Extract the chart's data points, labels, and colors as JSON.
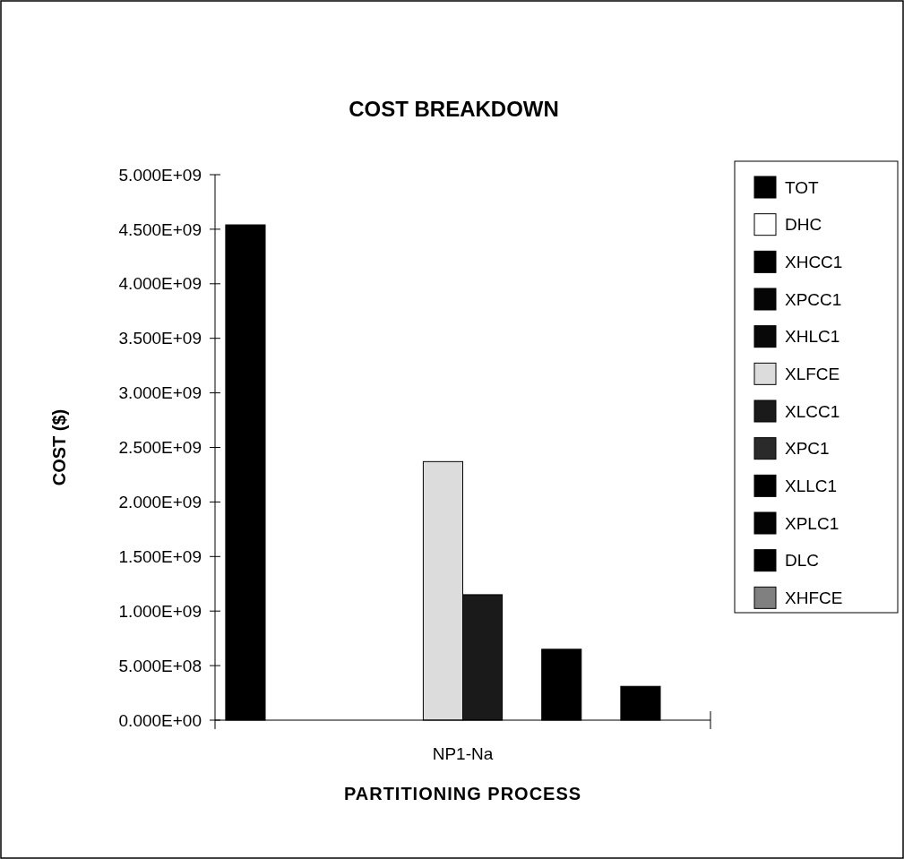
{
  "chart_data": {
    "type": "bar",
    "title": "COST BREAKDOWN",
    "xlabel": "PARTITIONING PROCESS",
    "ylabel": "COST ($)",
    "categories": [
      "NP1-Na"
    ],
    "series": [
      {
        "name": "TOT",
        "color": "#000000",
        "values": [
          4540000000
        ]
      },
      {
        "name": "DHC",
        "color": "#ffffff",
        "values": [
          0
        ]
      },
      {
        "name": "XHCC1",
        "color": "#000000",
        "values": [
          0
        ]
      },
      {
        "name": "XPCC1",
        "color": "#050505",
        "values": [
          0
        ]
      },
      {
        "name": "XHLC1",
        "color": "#080808",
        "values": [
          0
        ]
      },
      {
        "name": "XLFCE",
        "color": "#dcdcdc",
        "values": [
          2370000000
        ]
      },
      {
        "name": "XLCC1",
        "color": "#1a1a1a",
        "values": [
          1150000000
        ]
      },
      {
        "name": "XPC1",
        "color": "#2a2a2a",
        "values": [
          0
        ]
      },
      {
        "name": "XLLC1",
        "color": "#000000",
        "values": [
          650000000
        ]
      },
      {
        "name": "XPLC1",
        "color": "#030303",
        "values": [
          0
        ]
      },
      {
        "name": "DLC",
        "color": "#000000",
        "values": [
          310000000
        ]
      },
      {
        "name": "XHFCE",
        "color": "#808080",
        "values": [
          0
        ]
      }
    ],
    "ylim": [
      0,
      5000000000
    ],
    "yticks": [
      {
        "value": 0,
        "label": "0.000E+00"
      },
      {
        "value": 500000000,
        "label": "5.000E+08"
      },
      {
        "value": 1000000000,
        "label": "1.000E+09"
      },
      {
        "value": 1500000000,
        "label": "1.500E+09"
      },
      {
        "value": 2000000000,
        "label": "2.000E+09"
      },
      {
        "value": 2500000000,
        "label": "2.500E+09"
      },
      {
        "value": 3000000000,
        "label": "3.000E+09"
      },
      {
        "value": 3500000000,
        "label": "3.500E+09"
      },
      {
        "value": 4000000000,
        "label": "4.000E+09"
      },
      {
        "value": 4500000000,
        "label": "4.500E+09"
      },
      {
        "value": 5000000000,
        "label": "5.000E+09"
      }
    ],
    "legend": "right",
    "grid": false
  }
}
